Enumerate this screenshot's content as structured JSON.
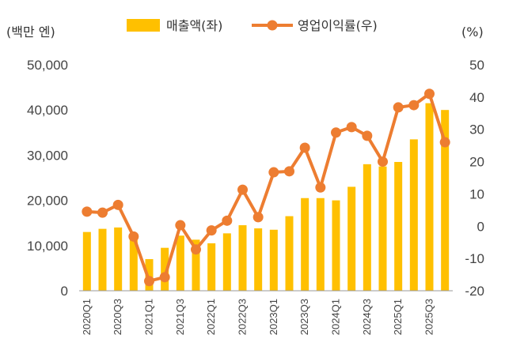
{
  "chart_data": {
    "type": "bar+line",
    "title": "",
    "left_unit": "(백만 엔)",
    "right_unit": "(%)",
    "categories": [
      "2020Q1",
      "2020Q2",
      "2020Q3",
      "2020Q4",
      "2021Q1",
      "2021Q2",
      "2021Q3",
      "2021Q4",
      "2022Q1",
      "2022Q2",
      "2022Q3",
      "2022Q4",
      "2023Q1",
      "2023Q2",
      "2023Q3",
      "2023Q4",
      "2024Q1",
      "2024Q2",
      "2024Q3",
      "2024Q4",
      "2025Q1",
      "2025Q2",
      "2025Q3",
      "2025Q4"
    ],
    "x_tick_labels": [
      "2020Q1",
      "",
      "2020Q3",
      "",
      "2021Q1",
      "",
      "2021Q3",
      "",
      "2022Q1",
      "",
      "2022Q3",
      "",
      "2023Q1",
      "",
      "2023Q3",
      "",
      "2024Q1",
      "",
      "2024Q3",
      "",
      "2025Q1",
      "",
      "2025Q3",
      ""
    ],
    "series": [
      {
        "name": "매출액(좌)",
        "kind": "bar",
        "axis": "left",
        "color": "#FFC000",
        "values": [
          13000,
          13700,
          14000,
          11900,
          7000,
          9500,
          12200,
          11300,
          10500,
          12700,
          14500,
          13800,
          13500,
          16500,
          20500,
          20500,
          20000,
          23000,
          28000,
          27500,
          28500,
          33500,
          41500,
          40000
        ]
      },
      {
        "name": "영업이익률(우)",
        "kind": "line",
        "axis": "right",
        "color": "#ED7D31",
        "values": [
          4.5,
          4.2,
          6.6,
          -3.2,
          -17.0,
          -15.8,
          0.3,
          -7.2,
          -1.3,
          1.7,
          11.3,
          2.8,
          16.7,
          17.0,
          24.3,
          12.0,
          29.0,
          30.7,
          28.0,
          20.0,
          36.8,
          37.5,
          41.0,
          26.0
        ]
      }
    ],
    "y_left": {
      "min": 0,
      "max": 50000,
      "ticks": [
        0,
        10000,
        20000,
        30000,
        40000,
        50000
      ],
      "tick_labels": [
        "0",
        "10,000",
        "20,000",
        "30,000",
        "40,000",
        "50,000"
      ]
    },
    "y_right": {
      "min": -20,
      "max": 50,
      "ticks": [
        -20,
        -10,
        0,
        10,
        20,
        30,
        40,
        50
      ],
      "tick_labels": [
        "-20",
        "-10",
        "0",
        "10",
        "20",
        "30",
        "40",
        "50"
      ]
    },
    "grid": false,
    "legend": {
      "position": "top-center",
      "items": [
        "매출액(좌)",
        "영업이익률(우)"
      ]
    }
  }
}
